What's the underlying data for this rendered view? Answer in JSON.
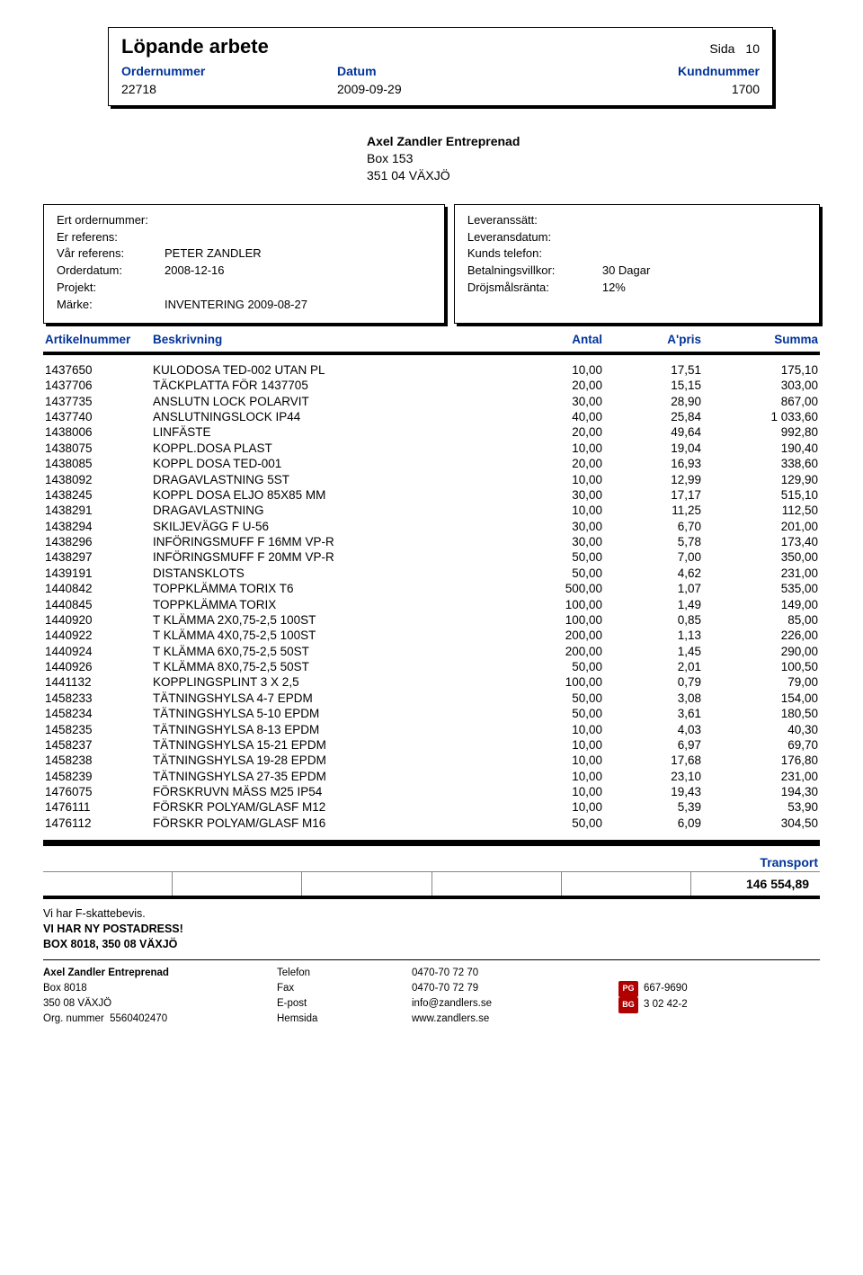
{
  "page": {
    "title": "Löpande arbete",
    "sida_label": "Sida",
    "sida_value": "10"
  },
  "order_header": {
    "labels": {
      "ordernummer": "Ordernummer",
      "datum": "Datum",
      "kundnummer": "Kundnummer"
    },
    "values": {
      "ordernummer": "22718",
      "datum": "2009-09-29",
      "kundnummer": "1700"
    }
  },
  "address": {
    "name": "Axel Zandler Entreprenad",
    "line1": "Box 153",
    "line2": "351 04  VÄXJÖ"
  },
  "info_left": {
    "ert_ordernummer_k": "Ert ordernummer:",
    "ert_ordernummer_v": "",
    "er_referens_k": "Er referens:",
    "er_referens_v": "",
    "var_referens_k": "Vår referens:",
    "var_referens_v": "PETER ZANDLER",
    "orderdatum_k": "Orderdatum:",
    "orderdatum_v": "2008-12-16",
    "projekt_k": "Projekt:",
    "projekt_v": "",
    "marke_k": "Märke:",
    "marke_v": "INVENTERING 2009-08-27"
  },
  "info_right": {
    "leveranssatt_k": "Leveranssätt:",
    "leveranssatt_v": "",
    "leveransdatum_k": "Leveransdatum:",
    "leveransdatum_v": "",
    "kunds_telefon_k": "Kunds telefon:",
    "kunds_telefon_v": "",
    "betalningsvillkor_k": "Betalningsvillkor:",
    "betalningsvillkor_v": "30  Dagar",
    "drojsmalsranta_k": "Dröjsmålsränta:",
    "drojsmalsranta_v": "12%"
  },
  "columns": {
    "artikelnummer": "Artikelnummer",
    "beskrivning": "Beskrivning",
    "antal": "Antal",
    "apris": "A'pris",
    "summa": "Summa"
  },
  "lines": [
    {
      "art": "1437650",
      "desc": "KULODOSA TED-002 UTAN PL",
      "qty": "10,00",
      "pris": "17,51",
      "sum": "175,10"
    },
    {
      "art": "1437706",
      "desc": "TÄCKPLATTA FÖR 1437705",
      "qty": "20,00",
      "pris": "15,15",
      "sum": "303,00"
    },
    {
      "art": "1437735",
      "desc": "ANSLUTN LOCK POLARVIT",
      "qty": "30,00",
      "pris": "28,90",
      "sum": "867,00"
    },
    {
      "art": "1437740",
      "desc": "ANSLUTNINGSLOCK IP44",
      "qty": "40,00",
      "pris": "25,84",
      "sum": "1 033,60"
    },
    {
      "art": "1438006",
      "desc": "LINFÄSTE",
      "qty": "20,00",
      "pris": "49,64",
      "sum": "992,80"
    },
    {
      "art": "1438075",
      "desc": "KOPPL.DOSA PLAST",
      "qty": "10,00",
      "pris": "19,04",
      "sum": "190,40"
    },
    {
      "art": "1438085",
      "desc": "KOPPL DOSA TED-001",
      "qty": "20,00",
      "pris": "16,93",
      "sum": "338,60"
    },
    {
      "art": "1438092",
      "desc": "DRAGAVLASTNING 5ST",
      "qty": "10,00",
      "pris": "12,99",
      "sum": "129,90"
    },
    {
      "art": "1438245",
      "desc": "KOPPL DOSA ELJO 85X85 MM",
      "qty": "30,00",
      "pris": "17,17",
      "sum": "515,10"
    },
    {
      "art": "1438291",
      "desc": "DRAGAVLASTNING",
      "qty": "10,00",
      "pris": "11,25",
      "sum": "112,50"
    },
    {
      "art": "1438294",
      "desc": "SKILJEVÄGG F U-56",
      "qty": "30,00",
      "pris": "6,70",
      "sum": "201,00"
    },
    {
      "art": "1438296",
      "desc": "INFÖRINGSMUFF F 16MM VP-R",
      "qty": "30,00",
      "pris": "5,78",
      "sum": "173,40"
    },
    {
      "art": "1438297",
      "desc": "INFÖRINGSMUFF F 20MM VP-R",
      "qty": "50,00",
      "pris": "7,00",
      "sum": "350,00"
    },
    {
      "art": "1439191",
      "desc": "DISTANSKLOTS",
      "qty": "50,00",
      "pris": "4,62",
      "sum": "231,00"
    },
    {
      "art": "1440842",
      "desc": "TOPPKLÄMMA TORIX T6",
      "qty": "500,00",
      "pris": "1,07",
      "sum": "535,00"
    },
    {
      "art": "1440845",
      "desc": "TOPPKLÄMMA TORIX",
      "qty": "100,00",
      "pris": "1,49",
      "sum": "149,00"
    },
    {
      "art": "1440920",
      "desc": "T KLÄMMA 2X0,75-2,5 100ST",
      "qty": "100,00",
      "pris": "0,85",
      "sum": "85,00"
    },
    {
      "art": "1440922",
      "desc": "T KLÄMMA 4X0,75-2,5 100ST",
      "qty": "200,00",
      "pris": "1,13",
      "sum": "226,00"
    },
    {
      "art": "1440924",
      "desc": "T KLÄMMA 6X0,75-2,5 50ST",
      "qty": "200,00",
      "pris": "1,45",
      "sum": "290,00"
    },
    {
      "art": "1440926",
      "desc": "T KLÄMMA 8X0,75-2,5 50ST",
      "qty": "50,00",
      "pris": "2,01",
      "sum": "100,50"
    },
    {
      "art": "1441132",
      "desc": "KOPPLINGSPLINT 3 X 2,5",
      "qty": "100,00",
      "pris": "0,79",
      "sum": "79,00"
    },
    {
      "art": "1458233",
      "desc": "TÄTNINGSHYLSA 4-7 EPDM",
      "qty": "50,00",
      "pris": "3,08",
      "sum": "154,00"
    },
    {
      "art": "1458234",
      "desc": "TÄTNINGSHYLSA 5-10 EPDM",
      "qty": "50,00",
      "pris": "3,61",
      "sum": "180,50"
    },
    {
      "art": "1458235",
      "desc": "TÄTNINGSHYLSA 8-13 EPDM",
      "qty": "10,00",
      "pris": "4,03",
      "sum": "40,30"
    },
    {
      "art": "1458237",
      "desc": "TÄTNINGSHYLSA 15-21 EPDM",
      "qty": "10,00",
      "pris": "6,97",
      "sum": "69,70"
    },
    {
      "art": "1458238",
      "desc": "TÄTNINGSHYLSA 19-28 EPDM",
      "qty": "10,00",
      "pris": "17,68",
      "sum": "176,80"
    },
    {
      "art": "1458239",
      "desc": "TÄTNINGSHYLSA 27-35 EPDM",
      "qty": "10,00",
      "pris": "23,10",
      "sum": "231,00"
    },
    {
      "art": "1476075",
      "desc": "FÖRSKRUVN MÄSS M25 IP54",
      "qty": "10,00",
      "pris": "19,43",
      "sum": "194,30"
    },
    {
      "art": "1476111",
      "desc": "FÖRSKR POLYAM/GLASF M12",
      "qty": "10,00",
      "pris": "5,39",
      "sum": "53,90"
    },
    {
      "art": "1476112",
      "desc": "FÖRSKR POLYAM/GLASF M16",
      "qty": "50,00",
      "pris": "6,09",
      "sum": "304,50"
    }
  ],
  "transport": {
    "label": "Transport",
    "value": "146 554,89"
  },
  "footer_notes": {
    "l1": "Vi har F-skattebevis.",
    "l2": "VI HAR NY POSTADRESS!",
    "l3": "BOX 8018, 350 08 VÄXJÖ"
  },
  "footer": {
    "company": "Axel Zandler Entreprenad",
    "addr1": "Box 8018",
    "addr2": "350 08  VÄXJÖ",
    "org_k": "Org. nummer",
    "org_v": "5560402470",
    "telefon_k": "Telefon",
    "fax_k": "Fax",
    "epost_k": "E-post",
    "hemsida_k": "Hemsida",
    "telefon_v": "0470-70 72 70",
    "fax_v": "0470-70 72 79",
    "epost_v": "info@zandlers.se",
    "hemsida_v": "www.zandlers.se",
    "plusgiro_icon": "PG",
    "plusgiro_v": "667-9690",
    "bankgiro_icon": "BG",
    "bankgiro_v": "3 02 42-2"
  },
  "colors": {
    "header_blue": "#003399",
    "text": "#000000",
    "icon_red": "#b00000",
    "border_grey": "#888888",
    "background": "#ffffff"
  }
}
